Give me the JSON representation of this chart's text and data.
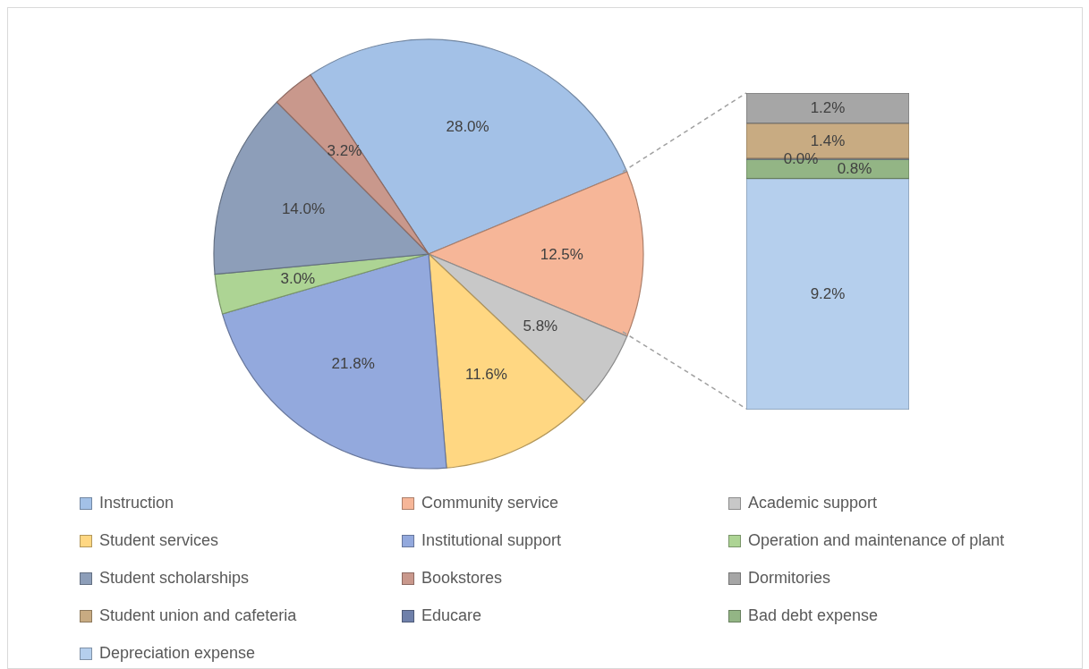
{
  "chart_data": [
    {
      "type": "pie",
      "categories": [
        "Instruction",
        "Community service",
        "Academic support",
        "Student services",
        "Institutional support",
        "Operation and maintenance of plant",
        "Student scholarships",
        "Bookstores"
      ],
      "values": [
        28.0,
        12.5,
        5.8,
        11.6,
        21.8,
        3.0,
        14.0,
        3.2
      ],
      "colors": [
        "#a3c1e7",
        "#f6b698",
        "#c8c8c8",
        "#ffd782",
        "#93a9dd",
        "#add494",
        "#8d9eb9",
        "#c9988c"
      ],
      "value_labels": [
        "28.0%",
        "12.5%",
        "5.8%",
        "11.6%",
        "21.8%",
        "3.0%",
        "14.0%",
        "3.2%"
      ],
      "legend": "bottom"
    },
    {
      "type": "bar",
      "stacked": true,
      "categories": [
        null
      ],
      "series": [
        {
          "name": "Depreciation expense",
          "color": "#b5cfed",
          "values": [
            9.2
          ],
          "value_labels": [
            "9.2%"
          ]
        },
        {
          "name": "Bad debt expense",
          "color": "#93b585",
          "values": [
            0.8
          ],
          "value_labels": [
            "0.8%"
          ]
        },
        {
          "name": "Educare",
          "color": "#6f80aa",
          "values": [
            0.0
          ],
          "value_labels": [
            "0.0%"
          ]
        },
        {
          "name": "Student union and cafeteria",
          "color": "#c8ab82",
          "values": [
            1.4
          ],
          "value_labels": [
            "1.4%"
          ]
        },
        {
          "name": "Dormitories",
          "color": "#a6a6a6",
          "values": [
            1.2
          ],
          "value_labels": [
            "1.2%"
          ]
        }
      ],
      "legend": "bottom"
    }
  ]
}
